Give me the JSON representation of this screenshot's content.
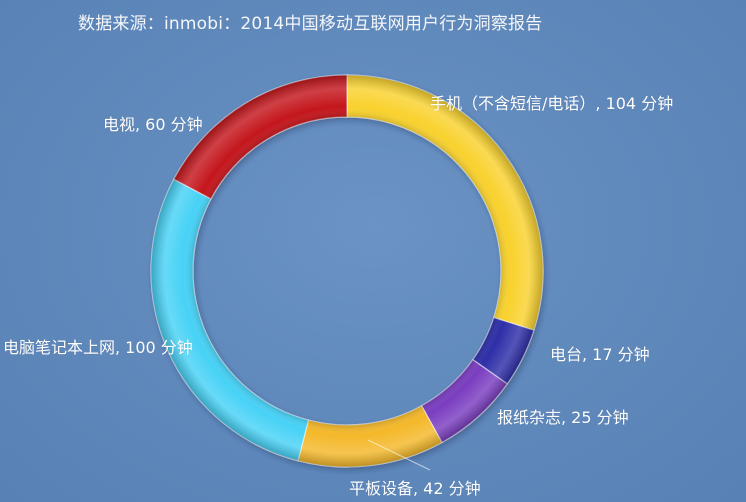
{
  "header": {
    "title": "数据来源：inmobi：2014中国移动互联网用户行为洞察报告"
  },
  "chart_data": {
    "type": "pie",
    "title": "数据来源：inmobi：2014中国移动互联网用户行为洞察报告",
    "donut": true,
    "unit": "分钟",
    "slices": [
      {
        "name": "手机（不含短信/电话）",
        "value": 104,
        "label": "手机（不含短信/电话）, 104 分钟",
        "color": "#f9d22e"
      },
      {
        "name": "电台",
        "value": 17,
        "label": "电台, 17 分钟",
        "color": "#2f2fa8"
      },
      {
        "name": "报纸杂志",
        "value": 25,
        "label": "报纸杂志, 25 分钟",
        "color": "#7a3cc0"
      },
      {
        "name": "平板设备",
        "value": 42,
        "label": "平板设备, 42 分钟",
        "color": "#f4b82a"
      },
      {
        "name": "电脑笔记本上网",
        "value": 100,
        "label": "电脑笔记本上网, 100 分钟",
        "color": "#46d2f6"
      },
      {
        "name": "电视",
        "value": 60,
        "label": "电视, 60 分钟",
        "color": "#c4181b"
      }
    ]
  }
}
